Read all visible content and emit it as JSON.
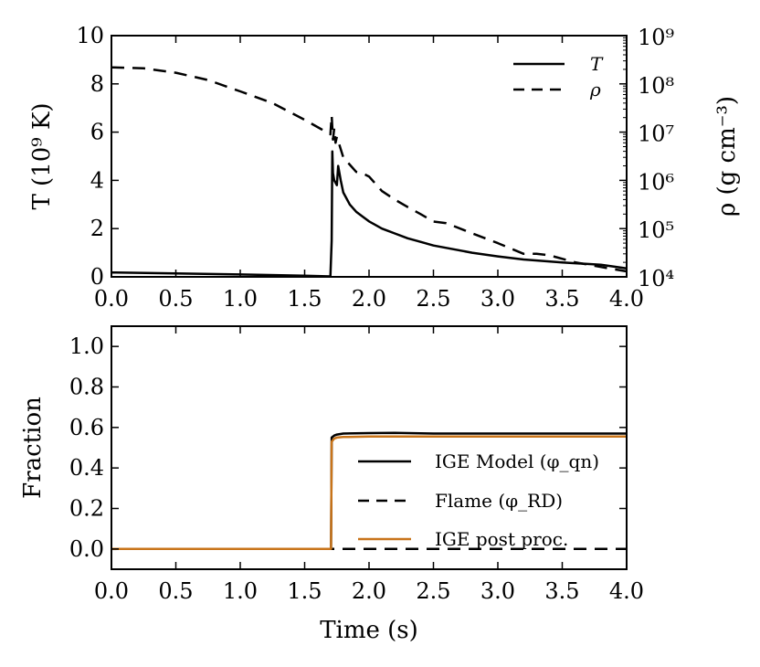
{
  "chart_data": [
    {
      "type": "line",
      "panel": "top",
      "xlabel": "",
      "ylabel": "T (10⁹ K)",
      "y2label": "ρ (g cm⁻³)",
      "xlim": [
        0,
        4
      ],
      "ylim": [
        0,
        10
      ],
      "y2lim_log10": [
        4,
        9
      ],
      "x_ticks": [
        "0.0",
        "0.5",
        "1.0",
        "1.5",
        "2.0",
        "2.5",
        "3.0",
        "3.5",
        "4.0"
      ],
      "y_ticks": [
        "0",
        "2",
        "4",
        "6",
        "8",
        "10"
      ],
      "y2_ticks": [
        "10⁴",
        "10⁵",
        "10⁶",
        "10⁷",
        "10⁸",
        "10⁹"
      ],
      "legend": {
        "placement": "top-right",
        "entries": [
          "T",
          "ρ"
        ]
      },
      "series": [
        {
          "name": "T",
          "axis": "left",
          "style": "solid",
          "color": "#000000",
          "x": [
            0.0,
            0.5,
            1.0,
            1.5,
            1.7,
            1.71,
            1.715,
            1.72,
            1.73,
            1.75,
            1.76,
            1.78,
            1.8,
            1.85,
            1.9,
            1.95,
            2.0,
            2.05,
            2.1,
            2.15,
            2.2,
            2.3,
            2.4,
            2.5,
            2.6,
            2.8,
            3.0,
            3.2,
            3.5,
            3.8,
            4.0
          ],
          "y": [
            0.18,
            0.14,
            0.1,
            0.05,
            0.02,
            1.5,
            5.2,
            4.3,
            4.0,
            3.8,
            4.6,
            4.0,
            3.5,
            3.0,
            2.7,
            2.5,
            2.3,
            2.15,
            2.0,
            1.9,
            1.8,
            1.6,
            1.45,
            1.3,
            1.2,
            1.0,
            0.85,
            0.72,
            0.6,
            0.5,
            0.35
          ]
        },
        {
          "name": "ρ",
          "axis": "right",
          "style": "dashed",
          "color": "#000000",
          "x": [
            0.0,
            0.25,
            0.5,
            0.75,
            1.0,
            1.25,
            1.5,
            1.7,
            1.71,
            1.72,
            1.73,
            1.74,
            1.75,
            1.8,
            1.9,
            1.95,
            2.0,
            2.1,
            2.2,
            2.3,
            2.4,
            2.5,
            2.6,
            2.8,
            3.0,
            3.2,
            3.3,
            3.4,
            3.6,
            3.8,
            4.0
          ],
          "y": [
            220000000.0,
            210000000.0,
            170000000.0,
            120000000.0,
            70000000.0,
            40000000.0,
            18000000.0,
            9000000.0,
            22000000.0,
            7000000.0,
            12000000.0,
            6000000.0,
            8000000.0,
            3000000.0,
            1500000.0,
            1400000.0,
            1200000.0,
            600000.0,
            400000.0,
            280000.0,
            200000.0,
            140000.0,
            130000.0,
            80000.0,
            50000.0,
            30000.0,
            30000.0,
            28000.0,
            20000.0,
            16000.0,
            13000.0
          ]
        }
      ]
    },
    {
      "type": "line",
      "panel": "bottom",
      "xlabel": "Time (s)",
      "ylabel": "Fraction",
      "xlim": [
        0,
        4
      ],
      "ylim": [
        -0.1,
        1.1
      ],
      "x_ticks": [
        "0.0",
        "0.5",
        "1.0",
        "1.5",
        "2.0",
        "2.5",
        "3.0",
        "3.5",
        "4.0"
      ],
      "y_ticks": [
        "0.0",
        "0.2",
        "0.4",
        "0.6",
        "0.8",
        "1.0"
      ],
      "legend": {
        "placement": "lower-right",
        "entries": [
          "IGE Model (φ_qn)",
          "Flame (φ_RD)",
          "IGE post proc."
        ]
      },
      "series": [
        {
          "name": "IGE Model (φ_qn)",
          "style": "solid",
          "color": "#000000",
          "x": [
            0.0,
            1.705,
            1.71,
            1.73,
            1.75,
            1.8,
            2.0,
            2.2,
            2.5,
            3.0,
            4.0
          ],
          "y": [
            0.0,
            0.0,
            0.55,
            0.56,
            0.565,
            0.57,
            0.572,
            0.573,
            0.57,
            0.57,
            0.57
          ]
        },
        {
          "name": "Flame (φ_RD)",
          "style": "dashed",
          "color": "#000000",
          "x": [
            0.0,
            4.0
          ],
          "y": [
            0.0,
            0.0
          ]
        },
        {
          "name": "IGE post proc.",
          "style": "solid",
          "color": "#c8741a",
          "x": [
            0.0,
            1.705,
            1.71,
            1.73,
            1.75,
            1.8,
            2.0,
            2.5,
            3.0,
            4.0
          ],
          "y": [
            0.0,
            0.0,
            0.53,
            0.545,
            0.55,
            0.553,
            0.555,
            0.555,
            0.555,
            0.555
          ]
        }
      ]
    }
  ]
}
